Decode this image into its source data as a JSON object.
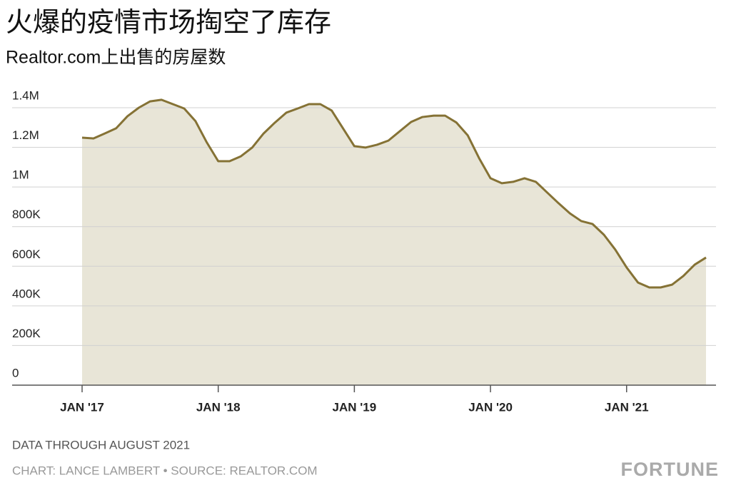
{
  "chart_data": {
    "type": "area",
    "title": "火爆的疫情市场掏空了库存",
    "subtitle": "Realtor.com上出售的房屋数",
    "note": "DATA THROUGH AUGUST 2021",
    "credit": "CHART: LANCE LAMBERT • SOURCE: REALTOR.COM",
    "brand": "FORTUNE",
    "x": [
      "2017-01",
      "2017-02",
      "2017-03",
      "2017-04",
      "2017-05",
      "2017-06",
      "2017-07",
      "2017-08",
      "2017-09",
      "2017-10",
      "2017-11",
      "2017-12",
      "2018-01",
      "2018-02",
      "2018-03",
      "2018-04",
      "2018-05",
      "2018-06",
      "2018-07",
      "2018-08",
      "2018-09",
      "2018-10",
      "2018-11",
      "2018-12",
      "2019-01",
      "2019-02",
      "2019-03",
      "2019-04",
      "2019-05",
      "2019-06",
      "2019-07",
      "2019-08",
      "2019-09",
      "2019-10",
      "2019-11",
      "2019-12",
      "2020-01",
      "2020-02",
      "2020-03",
      "2020-04",
      "2020-05",
      "2020-06",
      "2020-07",
      "2020-08",
      "2020-09",
      "2020-10",
      "2020-11",
      "2020-12",
      "2021-01",
      "2021-02",
      "2021-03",
      "2021-04",
      "2021-05",
      "2021-06",
      "2021-07",
      "2021-08"
    ],
    "values": [
      1249000,
      1245000,
      1270000,
      1296000,
      1357000,
      1400000,
      1432000,
      1440000,
      1418000,
      1396000,
      1332000,
      1224000,
      1130000,
      1130000,
      1155000,
      1199000,
      1270000,
      1325000,
      1375000,
      1396000,
      1418000,
      1418000,
      1386000,
      1296000,
      1206000,
      1199000,
      1213000,
      1234000,
      1281000,
      1328000,
      1353000,
      1360000,
      1360000,
      1325000,
      1260000,
      1145000,
      1044000,
      1019000,
      1026000,
      1044000,
      1026000,
      972000,
      918000,
      867000,
      828000,
      813000,
      759000,
      684000,
      594000,
      518000,
      493000,
      493000,
      507000,
      551000,
      608000,
      644000
    ],
    "color": "#857235",
    "fill_color": "#e8e5d7",
    "ylim": [
      0,
      1400000
    ],
    "yticks": [
      0,
      {
        "value": 200000,
        "label": "200K"
      },
      {
        "value": 400000,
        "label": "400K"
      },
      {
        "value": 600000,
        "label": "600K"
      },
      {
        "value": 800000,
        "label": "800K"
      },
      {
        "value": 1000000,
        "label": "1M"
      },
      {
        "value": 1200000,
        "label": "1.2M"
      },
      {
        "value": 1400000,
        "label": "1.4M"
      }
    ],
    "xticks": [
      {
        "value": "2017-01",
        "label": "JAN '17"
      },
      {
        "value": "2018-01",
        "label": "JAN '18"
      },
      {
        "value": "2019-01",
        "label": "JAN '19"
      },
      {
        "value": "2020-01",
        "label": "JAN '20"
      },
      {
        "value": "2021-01",
        "label": "JAN '21"
      }
    ],
    "grid": true
  }
}
